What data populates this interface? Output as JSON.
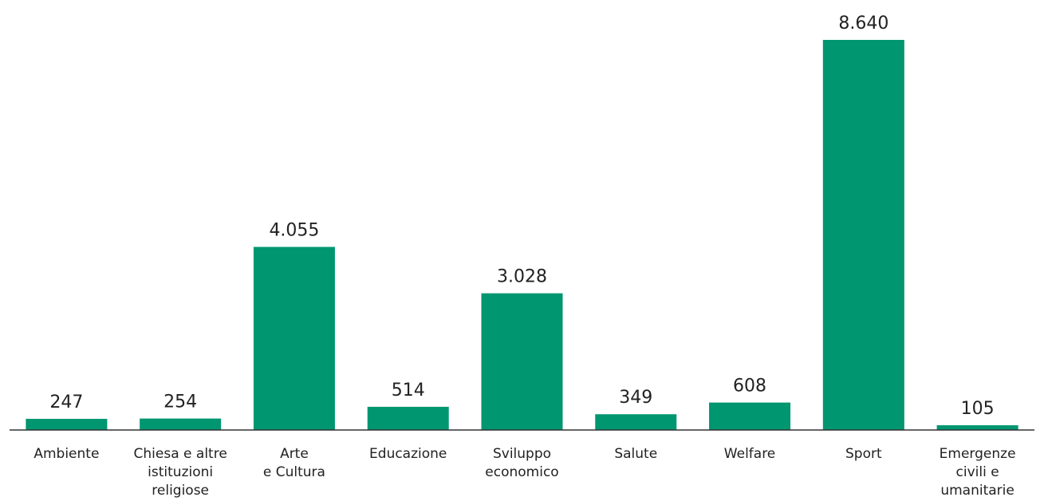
{
  "chart_data": {
    "type": "bar",
    "categories": [
      "Ambiente",
      "Chiesa e altre\nistituzioni\nreligiose",
      "Arte\ne Cultura",
      "Educazione",
      "Sviluppo\neconomico",
      "Salute",
      "Welfare",
      "Sport",
      "Emergenze\ncivili e umanitarie"
    ],
    "values": [
      247,
      254,
      4055,
      514,
      3028,
      349,
      608,
      8640,
      105
    ],
    "value_labels": [
      "247",
      "254",
      "4.055",
      "514",
      "3.028",
      "349",
      "608",
      "8.640",
      "105"
    ],
    "color": "#009670"
  }
}
